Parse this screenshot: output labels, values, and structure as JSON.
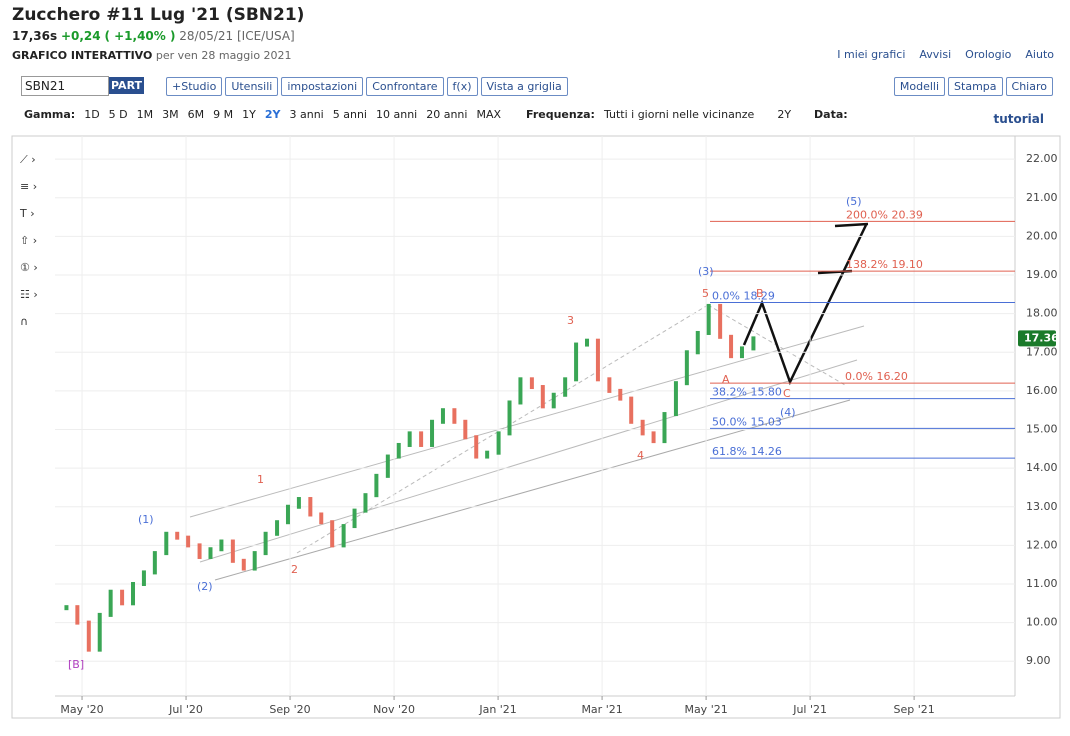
{
  "header": {
    "title": "Zucchero #11 Lug '21 (SBN21)",
    "price": "17,36s",
    "change": "+0,24",
    "change_pct": "( +1,40% )",
    "date": "28/05/21 [ICE/USA]",
    "mode": "GRAFICO INTERATTIVO",
    "mode_date": "per ven 28 maggio 2021"
  },
  "links": [
    "I miei grafici",
    "Avvisi",
    "Orologio",
    "Aiuto"
  ],
  "toolbar": {
    "symbol": "SBN21",
    "part": "PART",
    "buttons": [
      "+Studio",
      "Utensili",
      "impostazioni",
      "Confrontare",
      "f(x)",
      "Vista a griglia"
    ],
    "right_buttons": [
      "Modelli",
      "Stampa",
      "Chiaro"
    ]
  },
  "range": {
    "label": "Gamma:",
    "options": [
      "1D",
      "5 D",
      "1M",
      "3M",
      "6M",
      "9 M",
      "1Y",
      "2Y",
      "3 anni",
      "5 anni",
      "10 anni",
      "20 anni",
      "MAX"
    ],
    "selected": "2Y",
    "freq_label": "Frequenza:",
    "freq": "Tutti i giorni nelle vicinanze",
    "period": "2Y",
    "date_label": "Data:",
    "tutorial": "tutorial"
  },
  "chart_data": {
    "type": "ohlc",
    "series": [
      {
        "name": "SBN21",
        "color": "#3aa655",
        "down_color": "#e8705f",
        "x": [
          -0.3,
          -0.09,
          0.13,
          0.34,
          0.55,
          0.77,
          0.98,
          1.19,
          1.4,
          1.62,
          1.83,
          2.04,
          2.26,
          2.47,
          2.68,
          2.9,
          3.11,
          3.32,
          3.53,
          3.75,
          3.96,
          4.17,
          4.39,
          4.6,
          4.81,
          5.03,
          5.24,
          5.45,
          5.66,
          5.88,
          6.09,
          6.3,
          6.52,
          6.73,
          6.94,
          7.16,
          7.37,
          7.58,
          7.79,
          8.01,
          8.22,
          8.43,
          8.65,
          8.86,
          9.07,
          9.29,
          9.5,
          9.71,
          9.92,
          10.14,
          10.35,
          10.56,
          10.78,
          10.99,
          11.2,
          11.42,
          11.63,
          11.84,
          12.05,
          12.27,
          12.48,
          12.69,
          12.91
        ],
        "values": [
          10.4,
          10.0,
          9.3,
          10.2,
          10.8,
          10.5,
          11.0,
          11.3,
          11.8,
          12.3,
          12.2,
          12.0,
          11.7,
          11.9,
          12.1,
          11.6,
          11.4,
          11.8,
          12.3,
          12.6,
          13.0,
          13.2,
          12.8,
          12.6,
          12.0,
          12.5,
          12.9,
          13.3,
          13.8,
          14.3,
          14.6,
          14.9,
          14.6,
          15.2,
          15.5,
          15.2,
          14.8,
          14.3,
          14.4,
          14.9,
          15.7,
          16.3,
          16.1,
          15.6,
          15.9,
          16.3,
          17.2,
          17.3,
          16.3,
          16.0,
          15.8,
          15.2,
          14.9,
          14.7,
          15.4,
          16.2,
          17.0,
          17.5,
          18.2,
          17.4,
          16.9,
          17.1,
          17.36
        ]
      }
    ],
    "last_label": "17.36",
    "last_value": 17.36,
    "last_color": "#1a7a2a",
    "ylim": [
      8.1,
      22.6
    ],
    "yticks": [
      {
        "value": 9,
        "label": "9.00"
      },
      {
        "value": 10,
        "label": "10.00"
      },
      {
        "value": 11,
        "label": "11.00"
      },
      {
        "value": 12,
        "label": "12.00"
      },
      {
        "value": 13,
        "label": "13.00"
      },
      {
        "value": 14,
        "label": "14.00"
      },
      {
        "value": 15,
        "label": "15.00"
      },
      {
        "value": 16,
        "label": "16.00"
      },
      {
        "value": 17,
        "label": "17.00"
      },
      {
        "value": 18,
        "label": "18.00"
      },
      {
        "value": 19,
        "label": "19.00"
      },
      {
        "value": 20,
        "label": "20.00"
      },
      {
        "value": 21,
        "label": "21.00"
      },
      {
        "value": 22,
        "label": "22.00"
      }
    ],
    "xlim": [
      -0.52,
      17.94
    ],
    "xticks": [
      {
        "value": 0,
        "label": "May '20"
      },
      {
        "value": 2,
        "label": "Jul '20"
      },
      {
        "value": 4,
        "label": "Sep '20"
      },
      {
        "value": 6,
        "label": "Nov '20"
      },
      {
        "value": 8,
        "label": "Jan '21"
      },
      {
        "value": 10,
        "label": "Mar '21"
      },
      {
        "value": 12,
        "label": "May '21"
      },
      {
        "value": 14,
        "label": "Jul '21"
      },
      {
        "value": 16,
        "label": "Sep '21"
      }
    ],
    "grid": true,
    "fib_levels": [
      {
        "label": "200.0% 20.39",
        "price": 20.39,
        "color": "#e06050"
      },
      {
        "label": "138.2% 19.10",
        "price": 19.1,
        "color": "#e06050"
      },
      {
        "label": "0.0% 18.29",
        "price": 18.29,
        "color": "#4a6fd6"
      },
      {
        "label": "0.0% 16.20",
        "price": 16.2,
        "color": "#e06050"
      },
      {
        "label": "38.2% 15.80",
        "price": 15.8,
        "color": "#4a6fd6"
      },
      {
        "label": "50.0% 15.03",
        "price": 15.03,
        "color": "#4a6fd6"
      },
      {
        "label": "61.8% 14.26",
        "price": 14.26,
        "color": "#4a6fd6"
      }
    ],
    "annotations": [
      "(1)",
      "(2)",
      "1",
      "2",
      "3",
      "4",
      "5",
      "(3)",
      "(4)",
      "(5)",
      "A",
      "B",
      "C",
      "[B]"
    ]
  }
}
